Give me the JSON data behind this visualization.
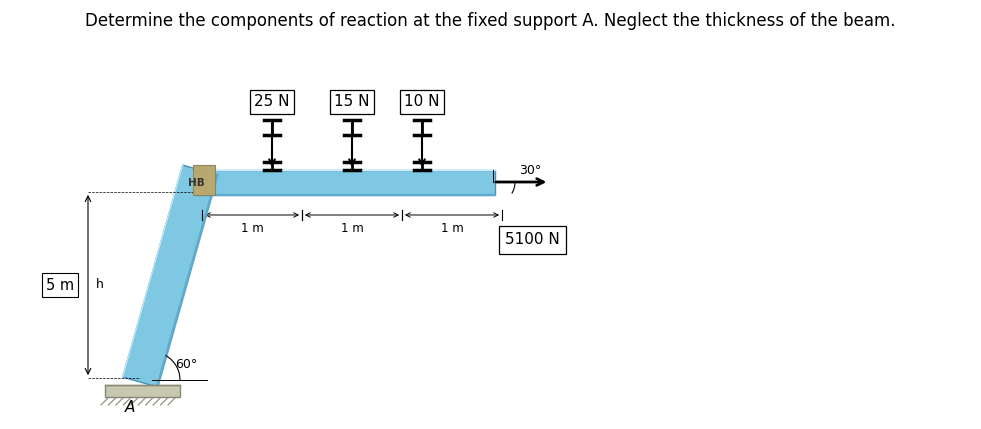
{
  "title": "Determine the components of reaction at the fixed support A. Neglect the thickness of the beam.",
  "title_fontsize": 12,
  "bg_color": "#ffffff",
  "beam_color_light": "#a8d8ea",
  "beam_color_mid": "#7ec8e3",
  "beam_color_dark": "#5aabcc",
  "beam_edge_color": "#4a90b8",
  "ground_color": "#c8b89a",
  "label_25N": "25 N",
  "label_15N": "15 N",
  "label_10N": "10 N",
  "label_5100N": "5100 N",
  "label_5m": "5 m",
  "label_angle_bot": "60°",
  "label_angle_top": "30°",
  "label_A": "A",
  "label_HB": "HB",
  "fig_width": 9.81,
  "fig_height": 4.29,
  "dpi": 100
}
